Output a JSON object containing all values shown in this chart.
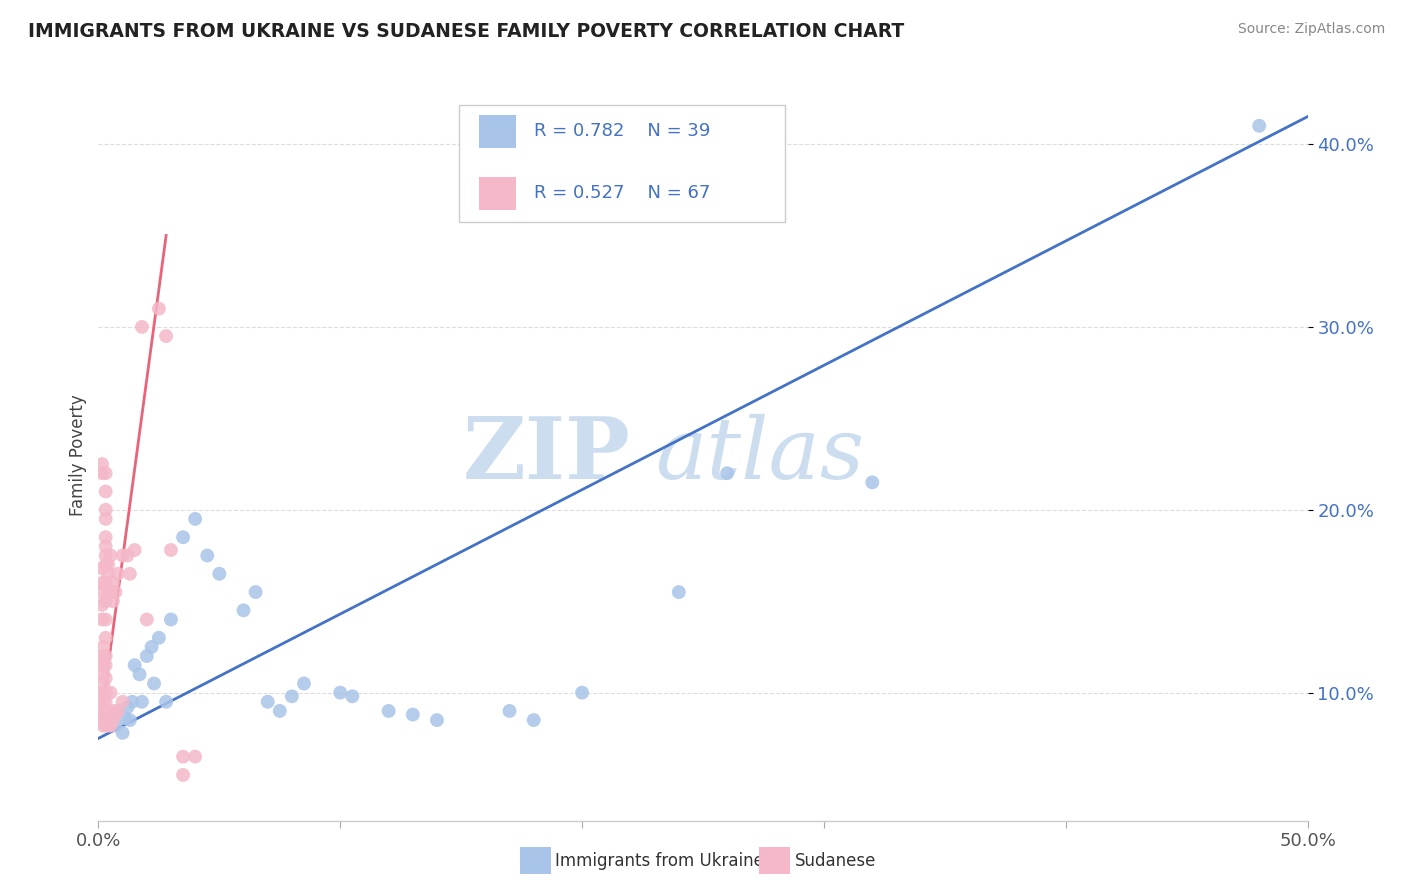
{
  "title": "IMMIGRANTS FROM UKRAINE VS SUDANESE FAMILY POVERTY CORRELATION CHART",
  "source": "Source: ZipAtlas.com",
  "ylabel": "Family Poverty",
  "ukraine_color": "#a8c4e8",
  "ukraine_line_color": "#4472c4",
  "sudanese_color": "#f4b8c8",
  "sudanese_line_color": "#e8647a",
  "ukraine_R": 0.782,
  "ukraine_N": 39,
  "sudanese_R": 0.527,
  "sudanese_N": 67,
  "legend_label_ukraine": "Immigrants from Ukraine",
  "legend_label_sudanese": "Sudanese",
  "watermark_zip": "ZIP",
  "watermark_atlas": "atlas",
  "background_color": "#ffffff",
  "grid_color": "#dddddd",
  "ukraine_scatter": [
    [
      0.5,
      8.5
    ],
    [
      0.7,
      8.2
    ],
    [
      0.8,
      9.0
    ],
    [
      1.0,
      7.8
    ],
    [
      1.1,
      8.6
    ],
    [
      1.2,
      9.2
    ],
    [
      1.3,
      8.5
    ],
    [
      1.4,
      9.5
    ],
    [
      1.5,
      11.5
    ],
    [
      1.7,
      11.0
    ],
    [
      1.8,
      9.5
    ],
    [
      2.0,
      12.0
    ],
    [
      2.2,
      12.5
    ],
    [
      2.3,
      10.5
    ],
    [
      2.5,
      13.0
    ],
    [
      2.8,
      9.5
    ],
    [
      3.0,
      14.0
    ],
    [
      3.5,
      18.5
    ],
    [
      4.0,
      19.5
    ],
    [
      4.5,
      17.5
    ],
    [
      5.0,
      16.5
    ],
    [
      6.0,
      14.5
    ],
    [
      6.5,
      15.5
    ],
    [
      7.0,
      9.5
    ],
    [
      7.5,
      9.0
    ],
    [
      8.0,
      9.8
    ],
    [
      8.5,
      10.5
    ],
    [
      10.0,
      10.0
    ],
    [
      10.5,
      9.8
    ],
    [
      12.0,
      9.0
    ],
    [
      13.0,
      8.8
    ],
    [
      14.0,
      8.5
    ],
    [
      17.0,
      9.0
    ],
    [
      18.0,
      8.5
    ],
    [
      20.0,
      10.0
    ],
    [
      24.0,
      15.5
    ],
    [
      26.0,
      22.0
    ],
    [
      32.0,
      21.5
    ],
    [
      48.0,
      41.0
    ]
  ],
  "sudanese_scatter": [
    [
      0.2,
      8.2
    ],
    [
      0.2,
      8.5
    ],
    [
      0.2,
      9.0
    ],
    [
      0.2,
      9.5
    ],
    [
      0.2,
      10.0
    ],
    [
      0.2,
      10.5
    ],
    [
      0.2,
      11.0
    ],
    [
      0.2,
      11.5
    ],
    [
      0.2,
      12.0
    ],
    [
      0.2,
      12.5
    ],
    [
      0.3,
      8.2
    ],
    [
      0.3,
      9.0
    ],
    [
      0.3,
      9.5
    ],
    [
      0.3,
      10.0
    ],
    [
      0.3,
      10.8
    ],
    [
      0.3,
      11.5
    ],
    [
      0.3,
      12.0
    ],
    [
      0.3,
      13.0
    ],
    [
      0.3,
      14.0
    ],
    [
      0.3,
      15.0
    ],
    [
      0.3,
      16.0
    ],
    [
      0.3,
      17.0
    ],
    [
      0.3,
      17.5
    ],
    [
      0.3,
      18.0
    ],
    [
      0.3,
      18.5
    ],
    [
      0.3,
      19.5
    ],
    [
      0.3,
      20.0
    ],
    [
      0.3,
      21.0
    ],
    [
      0.3,
      22.0
    ],
    [
      0.4,
      8.2
    ],
    [
      0.4,
      8.8
    ],
    [
      0.4,
      15.5
    ],
    [
      0.4,
      16.5
    ],
    [
      0.4,
      17.0
    ],
    [
      0.5,
      8.2
    ],
    [
      0.5,
      10.0
    ],
    [
      0.5,
      15.5
    ],
    [
      0.5,
      17.5
    ],
    [
      0.6,
      8.5
    ],
    [
      0.6,
      9.0
    ],
    [
      0.6,
      15.0
    ],
    [
      0.6,
      16.0
    ],
    [
      0.7,
      8.8
    ],
    [
      0.7,
      15.5
    ],
    [
      0.8,
      9.0
    ],
    [
      0.8,
      16.5
    ],
    [
      1.0,
      9.5
    ],
    [
      1.0,
      17.5
    ],
    [
      1.2,
      17.5
    ],
    [
      1.3,
      16.5
    ],
    [
      1.5,
      17.8
    ],
    [
      1.8,
      30.0
    ],
    [
      2.0,
      14.0
    ],
    [
      2.5,
      31.0
    ],
    [
      2.8,
      29.5
    ],
    [
      3.0,
      17.8
    ],
    [
      0.15,
      8.5
    ],
    [
      0.15,
      14.0
    ],
    [
      0.15,
      14.8
    ],
    [
      0.15,
      15.5
    ],
    [
      0.15,
      16.0
    ],
    [
      0.15,
      16.8
    ],
    [
      0.15,
      22.0
    ],
    [
      0.15,
      22.5
    ],
    [
      3.5,
      6.5
    ],
    [
      4.0,
      6.5
    ],
    [
      3.5,
      5.5
    ]
  ],
  "xlim": [
    0,
    50
  ],
  "ylim": [
    3,
    43
  ],
  "yticks": [
    10,
    20,
    30,
    40
  ],
  "xtick_minor": [
    10,
    20,
    30,
    40
  ],
  "uk_line_x": [
    0,
    50
  ],
  "uk_line_y": [
    7.5,
    41.5
  ],
  "su_line_x": [
    0.1,
    2.8
  ],
  "su_line_y": [
    8.5,
    35.0
  ]
}
